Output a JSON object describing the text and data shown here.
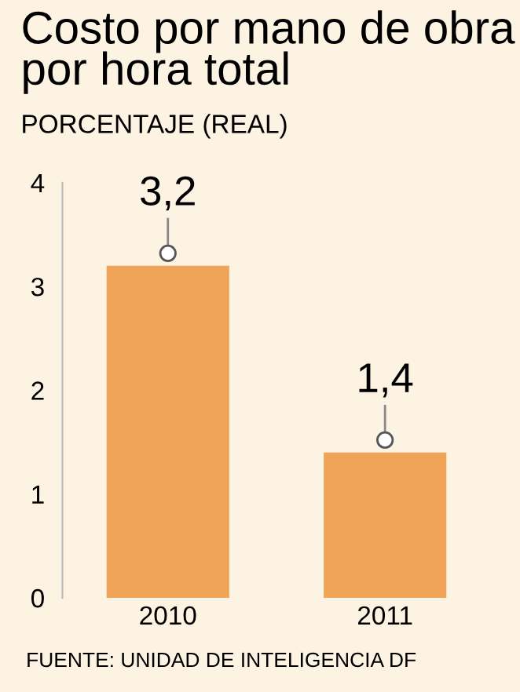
{
  "chart_data": {
    "type": "bar",
    "title": "Costo por mano de obra por hora total",
    "subtitle": "PORCENTAJE (REAL)",
    "categories": [
      "2010",
      "2011"
    ],
    "values": [
      3.2,
      1.4
    ],
    "value_labels": [
      "3,2",
      "1,4"
    ],
    "color": "#f0a458",
    "ylim": [
      0,
      4
    ],
    "yticks": [
      0,
      1,
      2,
      3,
      4
    ],
    "grid": false,
    "legend": false,
    "annotations": [
      "FUENTE: UNIDAD DE INTELIGENCIA DF"
    ]
  }
}
